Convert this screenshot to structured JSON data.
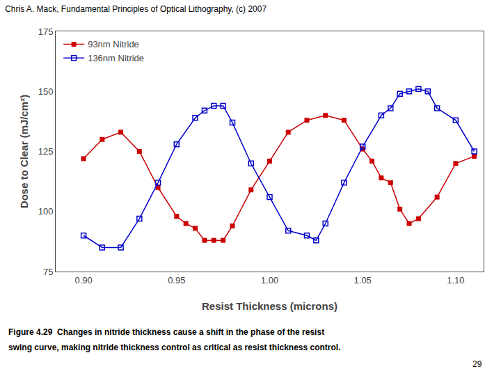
{
  "chart_data": {
    "type": "line",
    "title": "Chris A. Mack, Fundamental Principles of Optical Lithography, (c) 2007",
    "annotations": [
      "Figure 4.29  Changes in nitride thickness cause a shift in the phase of the resist",
      "swing curve, making nitride thickness control as critical as resist thickness control.",
      "29"
    ],
    "x_label": "Resist Thickness (microns)",
    "y_label": "Dose to Clear (mJ/cm²)",
    "xlim": [
      0.885,
      1.115
    ],
    "ylim": [
      75,
      175
    ],
    "xticks": [
      {
        "value": 0.9,
        "label": "0.90"
      },
      {
        "value": 0.95,
        "label": "0.95"
      },
      {
        "value": 1,
        "label": "1.00"
      },
      {
        "value": 1.05,
        "label": "1.05"
      },
      {
        "value": 1.1,
        "label": "1.10"
      }
    ],
    "yticks": [
      75,
      100,
      125,
      150,
      175
    ],
    "grid": false,
    "legend": "upper left",
    "series": [
      {
        "name": "93nm Nitride",
        "color": "#cc0000",
        "marker": "square",
        "x": [
          0.9,
          0.91,
          0.92,
          0.93,
          0.94,
          0.95,
          0.955,
          0.96,
          0.965,
          0.97,
          0.975,
          0.98,
          0.99,
          1.0,
          1.01,
          1.02,
          1.03,
          1.04,
          1.05,
          1.055,
          1.06,
          1.065,
          1.07,
          1.075,
          1.08,
          1.09,
          1.1,
          1.11
        ],
        "values": [
          122,
          130,
          133,
          125,
          110,
          98,
          95,
          93,
          88,
          88,
          88,
          94,
          109,
          121,
          133,
          138,
          140,
          138,
          126,
          121,
          114,
          112,
          101,
          95,
          97,
          106,
          120,
          123
        ]
      },
      {
        "name": "136nm Nitride",
        "color": "#0000cc",
        "marker": "square-open",
        "x": [
          0.9,
          0.91,
          0.92,
          0.93,
          0.94,
          0.95,
          0.96,
          0.965,
          0.97,
          0.975,
          0.98,
          0.99,
          1.0,
          1.01,
          1.02,
          1.025,
          1.03,
          1.04,
          1.05,
          1.06,
          1.065,
          1.07,
          1.075,
          1.08,
          1.085,
          1.09,
          1.1,
          1.11
        ],
        "values": [
          90,
          85,
          85,
          97,
          112,
          128,
          139,
          142,
          144,
          144,
          137,
          120,
          106,
          92,
          90,
          88,
          95,
          112,
          127,
          140,
          143,
          149,
          150,
          151,
          150,
          143,
          138,
          125
        ]
      }
    ]
  }
}
